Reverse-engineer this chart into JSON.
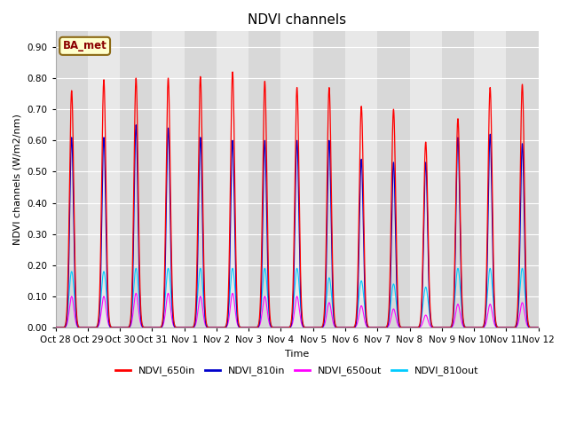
{
  "title": "NDVI channels",
  "ylabel": "NDVI channels (W/m2/nm)",
  "xlabel": "Time",
  "ylim": [
    0.0,
    0.95
  ],
  "yticks": [
    0.0,
    0.1,
    0.2,
    0.3,
    0.4,
    0.5,
    0.6,
    0.7,
    0.8,
    0.9
  ],
  "bg_color": "#e8e8e8",
  "annotation_text": "BA_met",
  "annotation_bg": "#ffffcc",
  "annotation_border": "#8B6914",
  "line_colors": {
    "NDVI_650in": "#ff0000",
    "NDVI_810in": "#0000cc",
    "NDVI_650out": "#ff00ff",
    "NDVI_810out": "#00ccff"
  },
  "total_days": 15,
  "spike_peaks_650in": [
    0.76,
    0.795,
    0.8,
    0.8,
    0.805,
    0.82,
    0.79,
    0.77,
    0.77,
    0.71,
    0.7,
    0.595,
    0.67,
    0.77,
    0.78
  ],
  "spike_peaks_810in": [
    0.61,
    0.61,
    0.65,
    0.64,
    0.61,
    0.6,
    0.6,
    0.6,
    0.6,
    0.54,
    0.53,
    0.53,
    0.61,
    0.62,
    0.59
  ],
  "spike_peaks_650out": [
    0.1,
    0.1,
    0.11,
    0.11,
    0.1,
    0.11,
    0.1,
    0.1,
    0.08,
    0.07,
    0.06,
    0.04,
    0.075,
    0.075,
    0.08
  ],
  "spike_peaks_810out": [
    0.18,
    0.18,
    0.19,
    0.19,
    0.19,
    0.19,
    0.19,
    0.19,
    0.16,
    0.15,
    0.14,
    0.13,
    0.19,
    0.19,
    0.19
  ],
  "xtick_labels": [
    "Oct 28",
    "Oct 29",
    "Oct 30",
    "Oct 31",
    "Nov 1",
    "Nov 2",
    "Nov 3",
    "Nov 4",
    "Nov 5",
    "Nov 6",
    "Nov 7",
    "Nov 8",
    "Nov 9",
    "Nov 10",
    "Nov 11",
    "Nov 12"
  ],
  "title_fontsize": 11,
  "label_fontsize": 8,
  "tick_fontsize": 7.5,
  "legend_fontsize": 8
}
